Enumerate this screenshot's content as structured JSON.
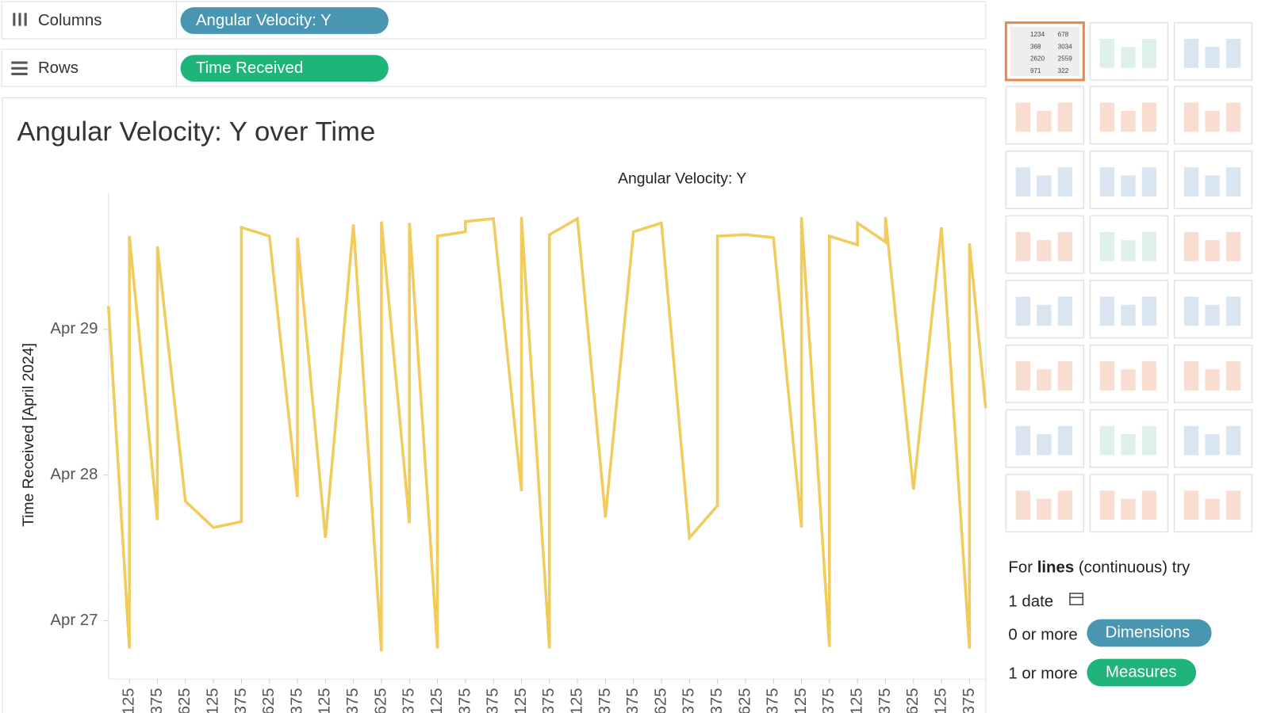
{
  "shelves": {
    "columns_label": "Columns",
    "columns_pill": "Angular Velocity: Y",
    "rows_label": "Rows",
    "rows_pill": "Time Received"
  },
  "chart_data": {
    "type": "line",
    "title": "Angular Velocity: Y over Time",
    "x_header": "Angular Velocity: Y",
    "y_label": "Time Received [April 2024]",
    "xlim": [
      -0.75,
      30.58
    ],
    "ylim": [
      26.6,
      29.94
    ],
    "xticks": [
      {
        "value": 0,
        "label": "125"
      },
      {
        "value": 1,
        "label": "375"
      },
      {
        "value": 2,
        "label": "625"
      },
      {
        "value": 3,
        "label": "125"
      },
      {
        "value": 4,
        "label": "375"
      },
      {
        "value": 5,
        "label": "625"
      },
      {
        "value": 6,
        "label": "375"
      },
      {
        "value": 7,
        "label": "125"
      },
      {
        "value": 8,
        "label": "375"
      },
      {
        "value": 9,
        "label": "625"
      },
      {
        "value": 10,
        "label": "375"
      },
      {
        "value": 11,
        "label": "125"
      },
      {
        "value": 12,
        "label": "375"
      },
      {
        "value": 13,
        "label": "375"
      },
      {
        "value": 14,
        "label": "125"
      },
      {
        "value": 15,
        "label": "375"
      },
      {
        "value": 16,
        "label": "125"
      },
      {
        "value": 17,
        "label": "375"
      },
      {
        "value": 18,
        "label": "375"
      },
      {
        "value": 19,
        "label": "625"
      },
      {
        "value": 20,
        "label": "375"
      },
      {
        "value": 21,
        "label": "375"
      },
      {
        "value": 22,
        "label": "625"
      },
      {
        "value": 23,
        "label": "375"
      },
      {
        "value": 24,
        "label": "125"
      },
      {
        "value": 25,
        "label": "375"
      },
      {
        "value": 26,
        "label": "125"
      },
      {
        "value": 27,
        "label": "375"
      },
      {
        "value": 28,
        "label": "625"
      },
      {
        "value": 29,
        "label": "125"
      },
      {
        "value": 30,
        "label": "375"
      }
    ],
    "yticks": [
      {
        "value": 27,
        "label": "Apr 27"
      },
      {
        "value": 28,
        "label": "Apr 28"
      },
      {
        "value": 29,
        "label": "Apr 29"
      }
    ],
    "series": [
      {
        "color": "#f1cb5c",
        "x": [
          -0.75,
          0,
          0,
          1,
          1,
          2,
          3,
          4,
          4,
          5,
          6,
          6,
          7,
          8,
          9,
          9,
          10,
          10,
          11,
          11,
          12,
          12,
          13,
          14,
          14,
          15,
          15,
          16,
          17,
          18,
          19,
          20,
          21,
          21,
          22,
          23,
          24,
          24,
          25,
          25,
          26,
          26,
          27,
          27,
          28,
          29,
          30,
          30,
          30.58
        ],
        "values": [
          29.16,
          26.81,
          29.64,
          27.69,
          29.57,
          27.82,
          27.64,
          27.68,
          29.7,
          29.64,
          27.85,
          29.63,
          27.57,
          29.72,
          26.79,
          29.74,
          27.67,
          29.73,
          26.81,
          29.64,
          29.67,
          29.74,
          29.76,
          27.89,
          29.77,
          26.81,
          29.65,
          29.76,
          27.71,
          29.67,
          29.73,
          27.57,
          27.79,
          29.64,
          29.65,
          29.63,
          27.64,
          29.77,
          26.82,
          29.64,
          29.58,
          29.73,
          29.6,
          29.77,
          27.9,
          29.7,
          26.81,
          29.59,
          28.46
        ]
      }
    ]
  },
  "show_me": {
    "table_icon_values": [
      "1234",
      "678",
      "368",
      "3034",
      "2620",
      "2559",
      "971",
      "322"
    ],
    "hint_prefix": "For",
    "hint_bold": "lines",
    "hint_suffix": "(continuous) try",
    "req_date": "1 date",
    "req_dims": "0 or more",
    "dims_pill": "Dimensions",
    "req_measures": "1 or more",
    "measures_pill": "Measures"
  }
}
